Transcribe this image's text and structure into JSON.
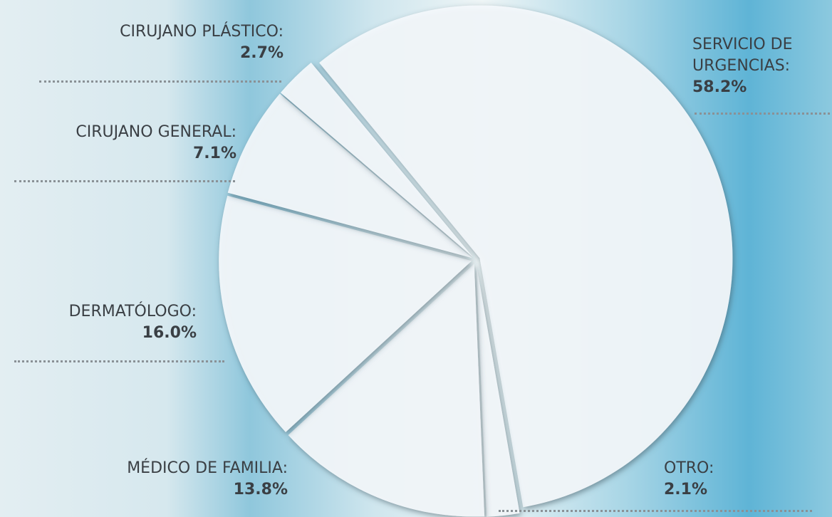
{
  "chart_data": {
    "type": "pie",
    "categories": [
      "SERVICIO DE URGENCIAS:",
      "OTRO:",
      "MÉDICO DE FAMILIA:",
      "DERMATÓLOGO:",
      "CIRUJANO GENERAL:",
      "CIRUJANO PLÁSTICO:"
    ],
    "values": [
      58.2,
      2.1,
      13.8,
      16.0,
      7.1,
      2.7
    ],
    "value_labels": [
      "58.2%",
      "2.1%",
      "13.8%",
      "16.0%",
      "7.1%",
      "2.7%"
    ],
    "color": "#f4f9fc"
  }
}
